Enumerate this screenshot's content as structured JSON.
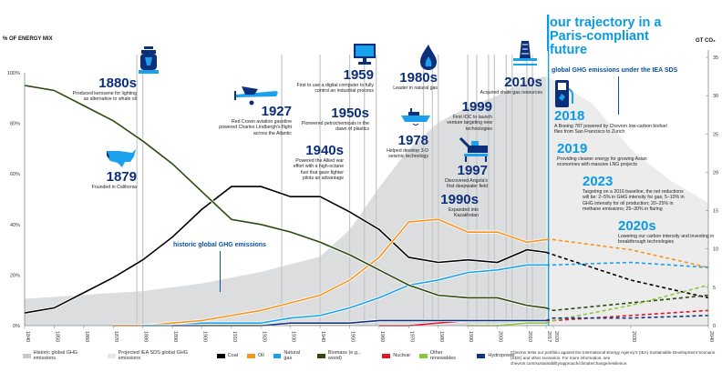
{
  "title": "our trajectory in a Paris-compliant future",
  "left_axis_label": "% OF ENERGY MIX",
  "right_axis_label": "GT CO₂",
  "callouts": {
    "historic": "historic global GHG emissions",
    "projected": "global GHG emissions under the IEA SDS"
  },
  "annotations": [
    {
      "year": "1880s",
      "text": "Produced kerosene for lighting as alternative to whale oil",
      "icon": "lantern-icon"
    },
    {
      "year": "1879",
      "text": "Founded in California",
      "icon": "usa-map-icon"
    },
    {
      "year": "1927",
      "text": "Red Crown aviation gasoline powered Charles Lindbergh's flight across the Atlantic",
      "icon": "airplane-icon"
    },
    {
      "year": "1940s",
      "text": "Powered the Allied war effort with a high-octane fuel that gave fighter pilots an advantage",
      "icon": ""
    },
    {
      "year": "1950s",
      "text": "Pioneered petrochemicals in the dawn of plastics",
      "icon": ""
    },
    {
      "year": "1959",
      "text": "First to use a digital computer to fully control an industrial process",
      "icon": "computer-monitor-icon"
    },
    {
      "year": "1980s",
      "text": "Leader in natural gas",
      "icon": "gas-flame-icon"
    },
    {
      "year": "1978",
      "text": "Helped develop 3-D seismic technology",
      "icon": "survey-ship-icon"
    },
    {
      "year": "1999",
      "text": "First IOC to launch venture targeting new technologies",
      "icon": ""
    },
    {
      "year": "2010s",
      "text": "Acquired shale gas resources",
      "icon": "drilling-rig-icon"
    },
    {
      "year": "1997",
      "text": "Discovered Angola's first deepwater field",
      "icon": "offshore-platform-icon"
    },
    {
      "year": "1990s",
      "text": "Expanded into Kazakhstan",
      "icon": ""
    },
    {
      "year": "2018",
      "text": "A Boeing 787 powered by Chevron low-carbon biofuel flies from San Francisco to Zurich",
      "icon": "fuel-pump-icon"
    },
    {
      "year": "2019",
      "text": "Providing cleaner energy for growing Asian economies with massive LNG projects",
      "icon": ""
    },
    {
      "year": "2023",
      "text": "Targeting on a 2016 baseline, the net reductions will be: 2–5% in GHG intensity for gas; 5–10% in GHG intensity for oil production; 20–25% in methane emissions; 25–30% in flaring",
      "icon": ""
    },
    {
      "year": "2020s",
      "text": "Lowering our carbon intensity and investing in breakthrough technologies",
      "icon": ""
    }
  ],
  "legend": [
    {
      "label": "Historic global GHG emissions",
      "color": "#c8c9cb",
      "style": "area"
    },
    {
      "label": "Projected IEA SDS global GHG emissions",
      "color": "#e6e7e8",
      "style": "area"
    },
    {
      "label": "Coal",
      "color": "#000000",
      "style": "line"
    },
    {
      "label": "Oil",
      "color": "#f7941d",
      "style": "line"
    },
    {
      "label": "Natural gas",
      "color": "#1ba1ec",
      "style": "line"
    },
    {
      "label": "Biomass (e.g., wood)",
      "color": "#2b4a0f",
      "style": "line"
    },
    {
      "label": "Nuclear",
      "color": "#e0182d",
      "style": "line"
    },
    {
      "label": "Other renewables",
      "color": "#8cc63f",
      "style": "line"
    },
    {
      "label": "Hydropower",
      "color": "#13357f",
      "style": "line"
    }
  ],
  "footnote": "Chevron tests our portfolio against the International Energy Agency's (IEA) Sustainable Development Scenario (SDS) and other scenarios. For more information, see chevron.com/sustainability/approach/climate/change/resilience.",
  "chart_data": {
    "type": "line",
    "title": "our trajectory in a Paris-compliant future",
    "xlabel": "",
    "ylabel": "% OF ENERGY MIX",
    "y2label": "GT CO₂",
    "x_ticks": [
      "1840",
      "1850",
      "1860",
      "1870",
      "1880",
      "1890",
      "1900",
      "1910",
      "1920",
      "1930",
      "1940",
      "1950",
      "1960",
      "1970",
      "1980",
      "1990",
      "2000",
      "2010",
      "2017",
      "2020",
      "2030",
      "2040"
    ],
    "y_ticks": [
      "0%",
      "20%",
      "40%",
      "60%",
      "80%",
      "100%"
    ],
    "y2_ticks": [
      "0",
      "5",
      "10",
      "15",
      "20",
      "25",
      "30",
      "35"
    ],
    "ylim": [
      0,
      100
    ],
    "y2lim": [
      0,
      35
    ],
    "projection_start": 2017,
    "series": [
      {
        "name": "Coal",
        "color": "#000000",
        "x": [
          1840,
          1850,
          1860,
          1870,
          1880,
          1890,
          1900,
          1910,
          1920,
          1930,
          1940,
          1950,
          1960,
          1970,
          1980,
          1990,
          2000,
          2010,
          2017,
          2020,
          2030,
          2040
        ],
        "values": [
          5,
          7,
          13,
          19,
          26,
          35,
          46,
          55,
          55,
          51,
          51,
          45,
          38,
          27,
          25,
          26,
          25,
          30,
          29,
          28,
          18,
          11
        ]
      },
      {
        "name": "Oil",
        "color": "#f7941d",
        "x": [
          1870,
          1880,
          1890,
          1900,
          1910,
          1920,
          1930,
          1940,
          1950,
          1960,
          1970,
          1980,
          1990,
          2000,
          2010,
          2017,
          2020,
          2030,
          2040
        ],
        "values": [
          0,
          0,
          1,
          2,
          4,
          6,
          9,
          12,
          18,
          27,
          41,
          42,
          37,
          37,
          33,
          34,
          34,
          30,
          23
        ]
      },
      {
        "name": "Natural gas",
        "color": "#1ba1ec",
        "x": [
          1880,
          1890,
          1900,
          1910,
          1920,
          1930,
          1940,
          1950,
          1960,
          1970,
          1980,
          1990,
          2000,
          2010,
          2017,
          2020,
          2030,
          2040
        ],
        "values": [
          0,
          0,
          1,
          1,
          1,
          3,
          4,
          7,
          11,
          16,
          18,
          21,
          22,
          24,
          24,
          24,
          25,
          23
        ]
      },
      {
        "name": "Biomass (e.g., wood)",
        "color": "#2b4a0f",
        "x": [
          1840,
          1850,
          1860,
          1870,
          1880,
          1890,
          1900,
          1910,
          1920,
          1930,
          1940,
          1950,
          1960,
          1970,
          1980,
          1990,
          2000,
          2010,
          2017,
          2020,
          2030,
          2040
        ],
        "values": [
          95,
          93,
          87,
          81,
          73,
          64,
          53,
          42,
          40,
          37,
          33,
          28,
          22,
          16,
          12,
          11,
          11,
          8,
          7,
          6,
          9,
          12
        ]
      },
      {
        "name": "Nuclear",
        "color": "#e0182d",
        "x": [
          1960,
          1970,
          1980,
          1990,
          2000,
          2010,
          2017,
          2020,
          2030,
          2040
        ],
        "values": [
          0,
          0,
          1,
          2,
          2,
          2,
          2,
          2,
          4,
          6
        ]
      },
      {
        "name": "Other renewables",
        "color": "#8cc63f",
        "x": [
          1990,
          2000,
          2010,
          2017,
          2020,
          2030,
          2040
        ],
        "values": [
          0,
          0,
          1,
          1,
          2,
          8,
          16
        ]
      },
      {
        "name": "Hydropower",
        "color": "#13357f",
        "x": [
          1890,
          1900,
          1910,
          1920,
          1930,
          1940,
          1950,
          1960,
          1970,
          1980,
          1990,
          2000,
          2010,
          2017,
          2020,
          2030,
          2040
        ],
        "values": [
          0,
          0,
          0,
          0,
          1,
          1,
          1,
          2,
          2,
          2,
          2,
          2,
          2,
          2,
          3,
          3,
          4
        ]
      }
    ],
    "emissions_GtCO2": {
      "historic": {
        "x": [
          1840,
          1880,
          1900,
          1920,
          1940,
          1950,
          1960,
          1970,
          1980,
          1990,
          2000,
          2010,
          2017
        ],
        "values": [
          3.5,
          4.5,
          5.5,
          7,
          9,
          12.5,
          18,
          23,
          26.5,
          28.5,
          30,
          32,
          32.5
        ]
      },
      "projected_IEA_SDS": {
        "x": [
          2017,
          2020,
          2025,
          2030,
          2035,
          2040
        ],
        "values": [
          32.5,
          32,
          29,
          23,
          19,
          16
        ]
      }
    }
  }
}
